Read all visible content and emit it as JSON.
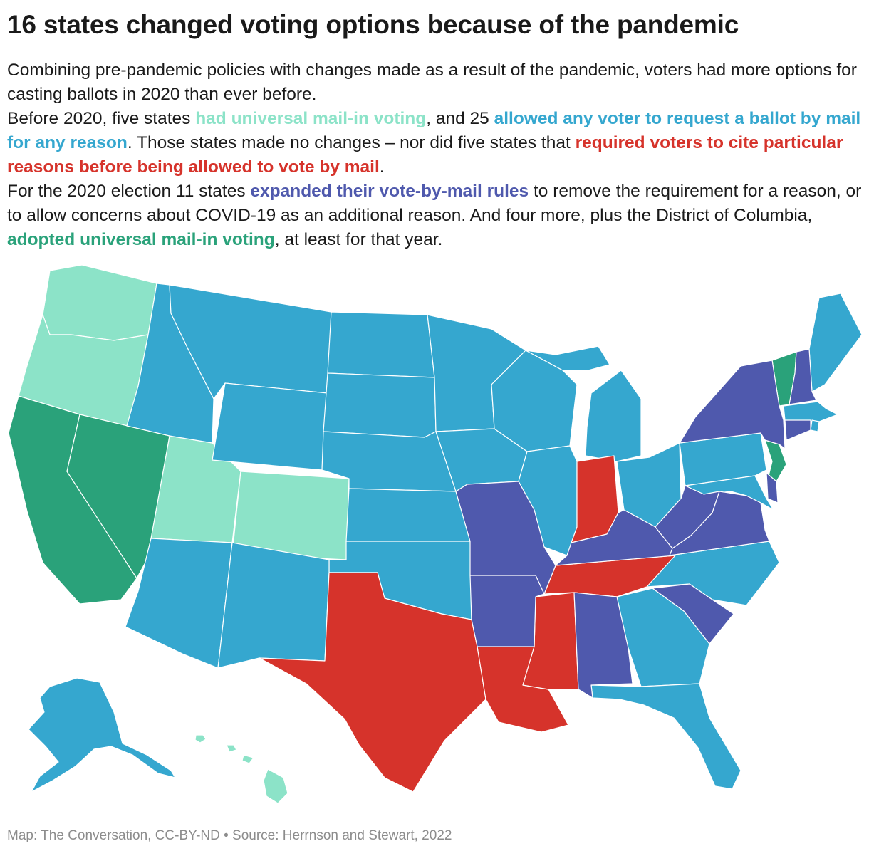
{
  "title": "16 states changed voting options because of the pandemic",
  "intro": {
    "p1": "Combining pre-pandemic policies with changes made as a result of the pandemic, voters had more options for casting ballots in 2020 than ever before.",
    "p2_a": "Before 2020, five states ",
    "p2_hl1": "had universal mail-in voting",
    "p2_b": ", and 25 ",
    "p2_hl2": "allowed any voter to request a ballot by mail for any reason",
    "p2_c": ". Those states made no changes – nor did five states that ",
    "p2_hl3": "required voters to cite particular reasons before being allowed to vote by mail",
    "p2_d": ".",
    "p3_a": "For the 2020 election 11 states ",
    "p3_hl1": "expanded their vote-by-mail rules",
    "p3_b": " to remove the requirement for a reason, or to allow concerns about COVID-19 as an additional reason. And four more, plus the District of Columbia, ",
    "p3_hl2": "adopted universal mail-in voting",
    "p3_c": ", at least for that year."
  },
  "colors": {
    "universal_before": "#8ce3c8",
    "any_reason": "#35a7cf",
    "excuse_required": "#d6332b",
    "expanded": "#4f59ad",
    "adopted_universal": "#2aa27a"
  },
  "footer": "Map: The Conversation, CC-BY-ND • Source: Herrnson and Stewart, 2022"
}
